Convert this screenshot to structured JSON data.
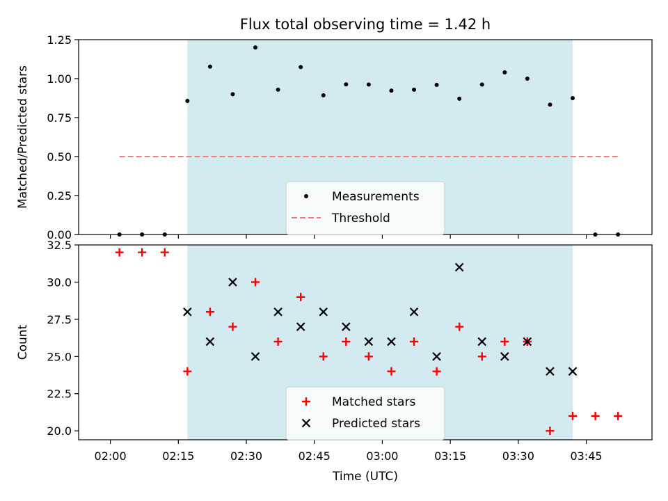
{
  "chart_data": {
    "title": "Flux total observing time = 1.42 h",
    "xlabel": "Time (UTC)",
    "x_ticks": [
      "02:00",
      "02:15",
      "02:30",
      "02:45",
      "03:00",
      "03:15",
      "03:30",
      "03:45"
    ],
    "shaded_interval": [
      "02:17",
      "03:42"
    ],
    "shade_color": "#d3eaf0",
    "panels": [
      {
        "type": "scatter",
        "ylabel": "Matched/Predicted stars",
        "ylim": [
          0.0,
          1.25
        ],
        "y_ticks": [
          "0.00",
          "0.25",
          "0.50",
          "0.75",
          "1.00",
          "1.25"
        ],
        "series": [
          {
            "name": "Measurements",
            "marker": "dot",
            "color": "#000000",
            "x": [
              "02:02",
              "02:07",
              "02:12",
              "02:17",
              "02:22",
              "02:27",
              "02:32",
              "02:37",
              "02:42",
              "02:47",
              "02:52",
              "02:57",
              "03:02",
              "03:07",
              "03:12",
              "03:17",
              "03:22",
              "03:27",
              "03:32",
              "03:37",
              "03:42",
              "03:47",
              "03:52"
            ],
            "y": [
              0.0,
              0.0,
              0.0,
              0.857,
              1.077,
              0.9,
              1.2,
              0.929,
              1.074,
              0.893,
              0.963,
              0.962,
              0.923,
              0.929,
              0.96,
              0.871,
              0.962,
              1.04,
              1.0,
              0.833,
              0.875,
              0.0,
              0.0
            ]
          }
        ],
        "reference_line": {
          "name": "Threshold",
          "y": 0.5,
          "x_range": [
            "02:02",
            "03:52"
          ],
          "color": "#f08080",
          "style": "dashed"
        },
        "legend": {
          "placement": "lower-center"
        }
      },
      {
        "type": "scatter",
        "ylabel": "Count",
        "ylim": [
          19.4,
          32.5
        ],
        "y_ticks": [
          "20.0",
          "22.5",
          "25.0",
          "27.5",
          "30.0",
          "32.5"
        ],
        "series": [
          {
            "name": "Matched stars",
            "marker": "plus",
            "color": "#ff0000",
            "x": [
              "02:02",
              "02:07",
              "02:12",
              "02:17",
              "02:22",
              "02:27",
              "02:32",
              "02:37",
              "02:42",
              "02:47",
              "02:52",
              "02:57",
              "03:02",
              "03:07",
              "03:12",
              "03:17",
              "03:22",
              "03:27",
              "03:32",
              "03:37",
              "03:42",
              "03:47",
              "03:52"
            ],
            "y": [
              32,
              32,
              32,
              24,
              28,
              27,
              30,
              26,
              29,
              25,
              26,
              25,
              24,
              26,
              24,
              27,
              25,
              26,
              26,
              20,
              21,
              21,
              21
            ]
          },
          {
            "name": "Predicted stars",
            "marker": "x",
            "color": "#000000",
            "x": [
              "02:17",
              "02:22",
              "02:27",
              "02:32",
              "02:37",
              "02:42",
              "02:47",
              "02:52",
              "02:57",
              "03:02",
              "03:07",
              "03:12",
              "03:17",
              "03:22",
              "03:27",
              "03:32",
              "03:37",
              "03:42"
            ],
            "y": [
              28,
              26,
              30,
              25,
              28,
              27,
              28,
              27,
              26,
              26,
              28,
              25,
              31,
              26,
              25,
              26,
              24,
              24
            ]
          }
        ],
        "legend": {
          "placement": "lower-center"
        }
      }
    ]
  }
}
